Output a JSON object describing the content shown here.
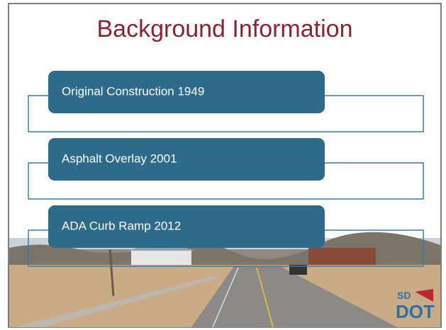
{
  "slide": {
    "title": "Background Information",
    "items": [
      "Original Construction 1949",
      "Asphalt Overlay 2001",
      "ADA Curb Ramp 2012"
    ],
    "logo": {
      "top": "SD",
      "bottom": "DOT"
    }
  }
}
